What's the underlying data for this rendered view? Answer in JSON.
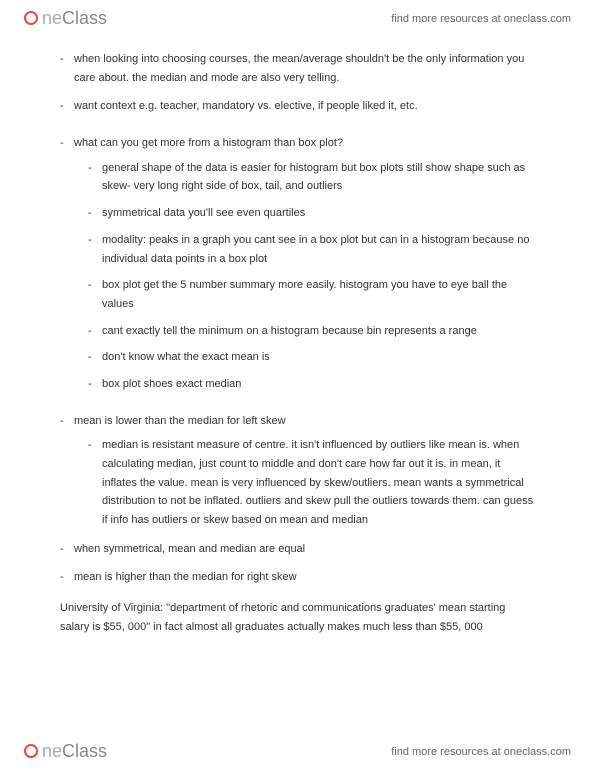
{
  "brand": {
    "part1": "ne",
    "part2": "Class"
  },
  "tagline": "find more resources at oneclass.com",
  "notes": {
    "b1": "when looking into choosing courses, the mean/average shouldn't be the only information you care about. the median and mode are also very telling.",
    "b2": "want context e.g. teacher, mandatory vs. elective, if people liked it, etc.",
    "b3": "what can you get more from a histogram than box plot?",
    "b3_sub": [
      "general shape of the data is easier for histogram but box plots still show shape such as skew- very long right side of box, tail, and outliers",
      "symmetrical data you'll see even quartiles",
      "modality: peaks in a graph you cant see in a box plot but can in a histogram because no individual data points in a box plot",
      "box plot get the 5 number summary more easily. histogram you have to eye ball the values",
      "cant exactly tell the minimum on a histogram because bin represents a range",
      "don't know what the exact mean is",
      "box plot shoes exact median"
    ],
    "b4": "mean is lower than the median for left skew",
    "b4_sub": [
      "median is resistant measure of centre. it isn't influenced by outliers like mean is. when calculating median, just count to middle and don't care how far out it is. in mean, it inflates the value. mean is very influenced by skew/outliers. mean wants a symmetrical distribution to not be inflated. outliers and skew pull the outliers towards them. can guess if info has outliers or skew based on mean and median"
    ],
    "b5": "when symmetrical, mean and median are equal",
    "b6": "mean is higher than the median for right skew",
    "para": "University of Virginia: \"department of rhetoric and communications graduates' mean starting salary is $55, 000\" in fact almost all graduates actually makes much less than $55, 000"
  }
}
